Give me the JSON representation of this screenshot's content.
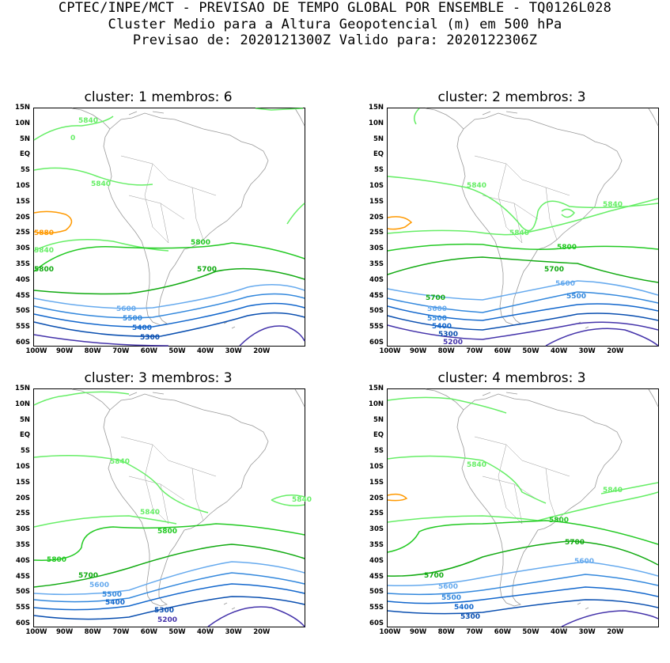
{
  "header": {
    "line1": "CPTEC/INPE/MCT - PREVISAO DE TEMPO GLOBAL POR ENSEMBLE - TQ0126L028",
    "line2": "Cluster Medio para a Altura Geopotencial (m) em 500 hPa",
    "line3": "Previsao de: 2020121300Z   Valido para: 2020122306Z"
  },
  "lat_labels": [
    "15N",
    "10N",
    "5N",
    "EQ",
    "5S",
    "10S",
    "15S",
    "20S",
    "25S",
    "30S",
    "35S",
    "40S",
    "45S",
    "50S",
    "55S",
    "60S"
  ],
  "lon_labels": [
    "100W",
    "90W",
    "80W",
    "70W",
    "60W",
    "50W",
    "40W",
    "30W",
    "20W"
  ],
  "colors": {
    "c5880": "#ff9900",
    "c5840": "#66ee66",
    "c5800": "#22c922",
    "c5700": "#11aa11",
    "c5600": "#66aaee",
    "c5500": "#3388dd",
    "c5400": "#1166cc",
    "c5300": "#0a4fb0",
    "c5200": "#4433aa",
    "coast": "#999999"
  },
  "panels": [
    {
      "title": "cluster: 1   membros: 6",
      "labels": {
        "l5840a": "5840",
        "l0": "0",
        "l5840b": "5840",
        "l5880": "5880",
        "l5840c": "5840",
        "l5800a": "5800",
        "l5800b": "5800",
        "l5700": "5700",
        "l5600": "5600",
        "l5500": "5500",
        "l5400": "5400",
        "l5300": "5300"
      }
    },
    {
      "title": "cluster: 2   membros: 3",
      "labels": {
        "l5840a": "5840",
        "l5840b": "5840",
        "l5840c": "5840",
        "l5800": "5800",
        "l5700a": "5700",
        "l5700b": "5700",
        "l5600a": "5600",
        "l5600b": "5600",
        "l5500a": "5500",
        "l5500b": "5500",
        "l5400": "5400",
        "l5300": "5300",
        "l5200": "5200"
      }
    },
    {
      "title": "cluster: 3   membros: 3",
      "labels": {
        "l5840a": "5840",
        "l5840b": "5840",
        "l5840c": "5840",
        "l5800a": "5800",
        "l5800b": "5800",
        "l5700": "5700",
        "l5600": "5600",
        "l5500": "5500",
        "l5400": "5400",
        "l5300": "5300",
        "l5200": "5200"
      }
    },
    {
      "title": "cluster: 4   membros: 3",
      "labels": {
        "l5840a": "5840",
        "l5840b": "5840",
        "l5800": "5800",
        "l5700a": "5700",
        "l5700b": "5700",
        "l5600a": "5600",
        "l5600b": "5600",
        "l5500": "5500",
        "l5400": "5400",
        "l5300": "5300"
      }
    }
  ]
}
